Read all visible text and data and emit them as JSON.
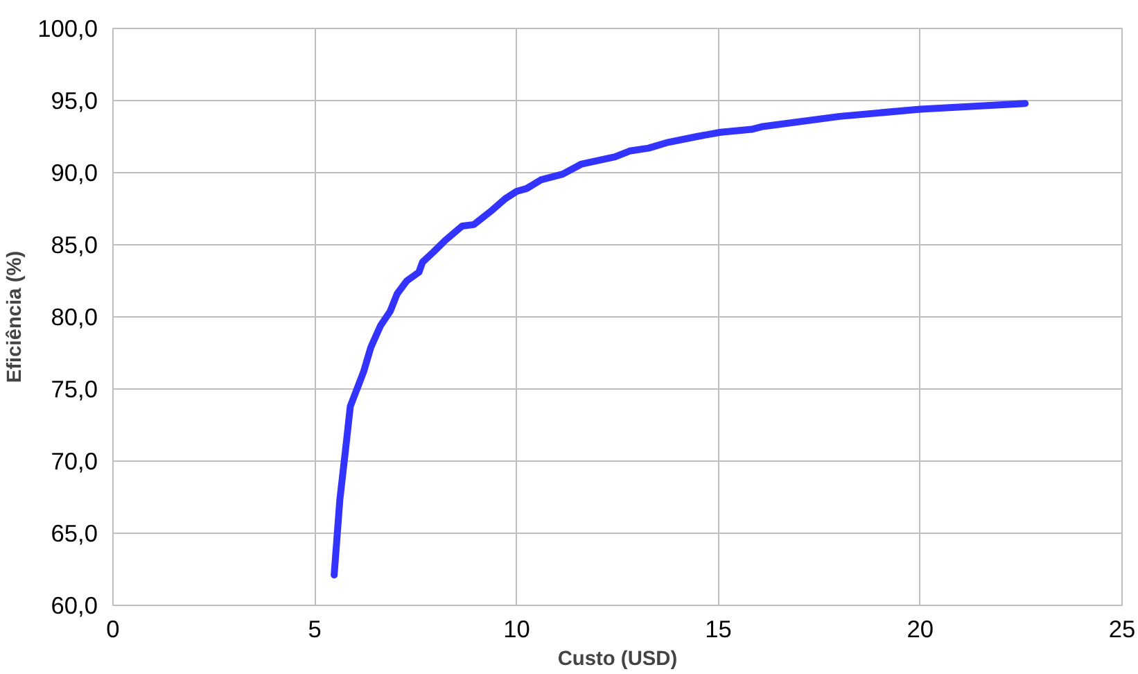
{
  "chart_data": {
    "type": "line",
    "xlabel": "Custo (USD)",
    "ylabel": "Eficiência (%)",
    "xlim": [
      0,
      25
    ],
    "xticks": [
      0,
      5,
      10,
      15,
      20,
      25
    ],
    "ylim": [
      60,
      100
    ],
    "yticks": [
      {
        "value": 60,
        "label": "60,0"
      },
      {
        "value": 65,
        "label": "65,0"
      },
      {
        "value": 70,
        "label": "70,0"
      },
      {
        "value": 75,
        "label": "75,0"
      },
      {
        "value": 80,
        "label": "80,0"
      },
      {
        "value": 85,
        "label": "85,0"
      },
      {
        "value": 90,
        "label": "90,0"
      },
      {
        "value": 95,
        "label": "95,0"
      },
      {
        "value": 100,
        "label": "100,0"
      }
    ],
    "grid": true,
    "marker": "none",
    "line_style": "solid",
    "series": [
      {
        "color": "#3333ff",
        "x": [
          5.48,
          5.62,
          5.77,
          5.88,
          6.21,
          6.39,
          6.63,
          6.87,
          7.04,
          7.28,
          7.58,
          7.67,
          7.94,
          8.23,
          8.65,
          8.94,
          9.35,
          9.72,
          10.0,
          10.25,
          10.6,
          11.14,
          11.61,
          12.44,
          12.8,
          13.27,
          13.75,
          14.46,
          15.05,
          15.82,
          16.1,
          18.0,
          20.0,
          22.6
        ],
        "values": [
          62.1,
          67.3,
          71.0,
          73.8,
          76.2,
          77.9,
          79.4,
          80.4,
          81.6,
          82.5,
          83.1,
          83.8,
          84.5,
          85.3,
          86.3,
          86.4,
          87.3,
          88.2,
          88.7,
          88.9,
          89.5,
          89.9,
          90.6,
          91.1,
          91.5,
          91.7,
          92.1,
          92.5,
          92.8,
          93.0,
          93.2,
          93.9,
          94.4,
          94.8
        ]
      }
    ]
  }
}
